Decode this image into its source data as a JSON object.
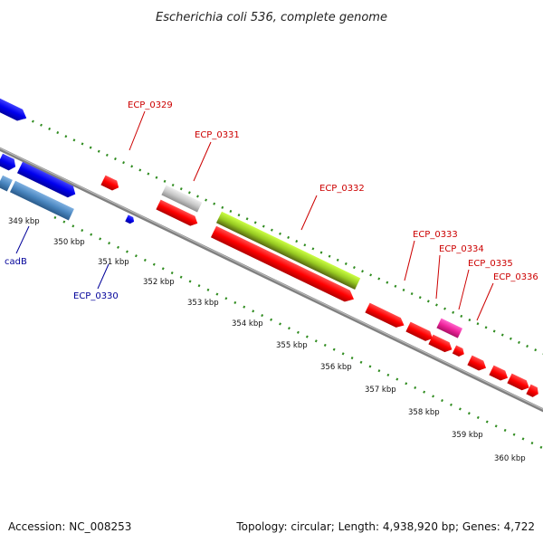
{
  "title": "Escherichia coli 536, complete genome",
  "accession": "Accession: NC_008253",
  "topology": "Topology: circular; Length: 4,938,920 bp; Genes: 4,722",
  "kbp_labels": [
    "349 kbp",
    "350 kbp",
    "351 kbp",
    "352 kbp",
    "353 kbp",
    "354 kbp",
    "355 kbp",
    "356 kbp",
    "357 kbp",
    "358 kbp",
    "359 kbp",
    "360 kbp"
  ],
  "gene_labels": [
    {
      "text": "ECP_0329",
      "color": "#cc0000"
    },
    {
      "text": "ECP_0331",
      "color": "#cc0000"
    },
    {
      "text": "ECP_0332",
      "color": "#cc0000"
    },
    {
      "text": "ECP_0333",
      "color": "#cc0000"
    },
    {
      "text": "ECP_0334",
      "color": "#cc0000"
    },
    {
      "text": "ECP_0335",
      "color": "#cc0000"
    },
    {
      "text": "ECP_0336",
      "color": "#cc0000"
    },
    {
      "text": "cadB",
      "color": "#000099"
    },
    {
      "text": "ECP_0330",
      "color": "#000099"
    }
  ],
  "colors": {
    "backbone": "#808080",
    "gc_skew": "#2e8b1e",
    "gene_forward": "#ff0000",
    "gene_blue": "#0000ee",
    "gene_steelblue": "#4a86c0",
    "gene_gray": "#c8c8c8",
    "gene_lime": "#99cc22",
    "gene_pink": "#ee2299"
  }
}
